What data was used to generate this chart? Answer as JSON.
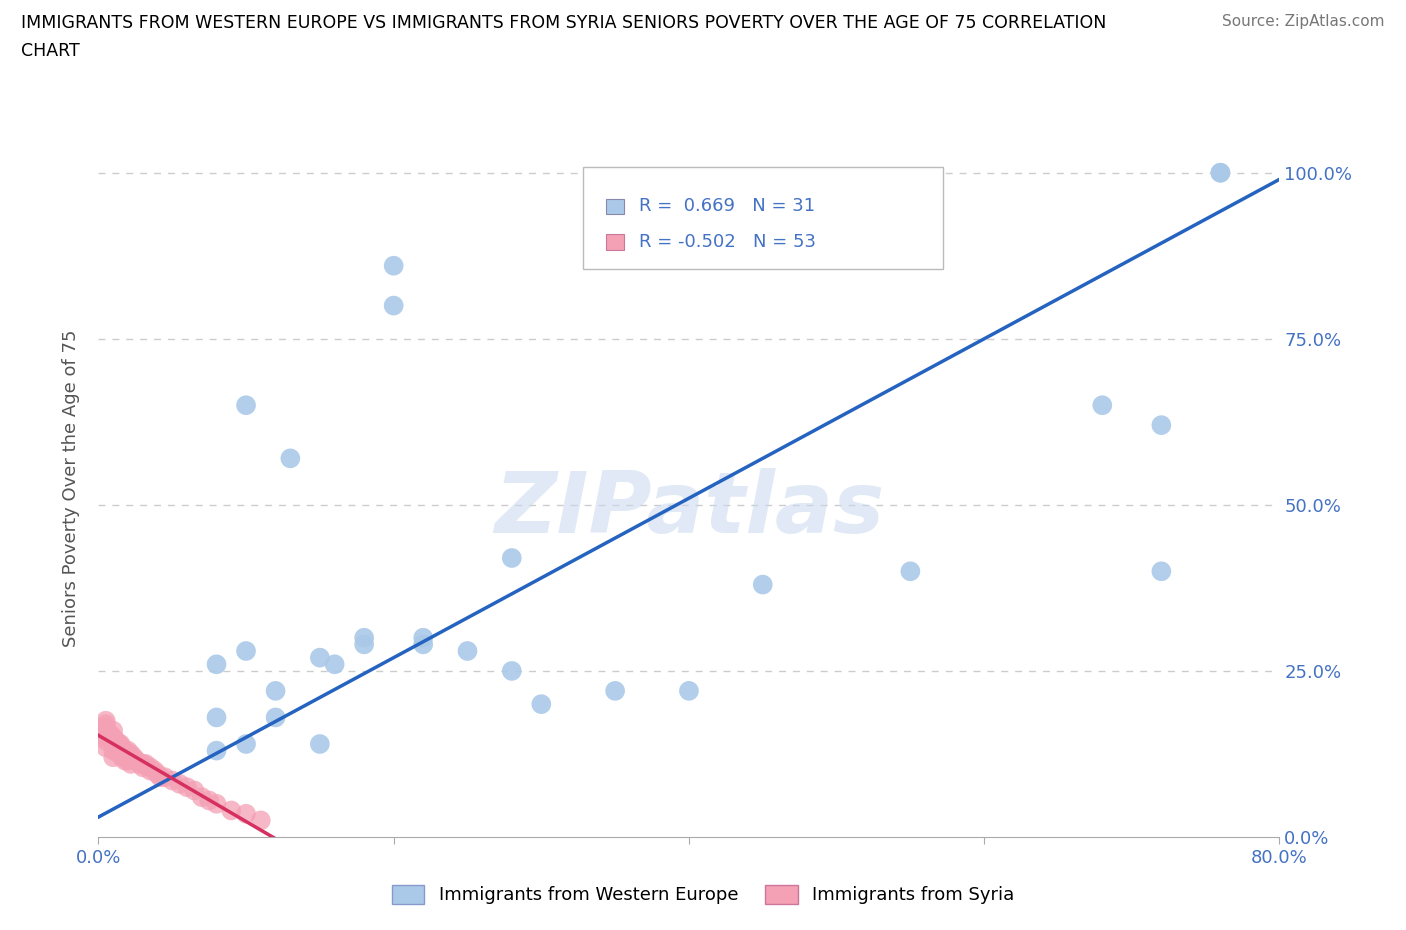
{
  "title_line1": "IMMIGRANTS FROM WESTERN EUROPE VS IMMIGRANTS FROM SYRIA SENIORS POVERTY OVER THE AGE OF 75 CORRELATION",
  "title_line2": "CHART",
  "source": "Source: ZipAtlas.com",
  "ylabel": "Seniors Poverty Over the Age of 75",
  "watermark": "ZIPatlas",
  "blue_R": 0.669,
  "blue_N": 31,
  "pink_R": -0.502,
  "pink_N": 53,
  "blue_color": "#aac9e8",
  "pink_color": "#f4a0b5",
  "line_blue": "#2563c0",
  "line_pink": "#d63060",
  "xlim": [
    0,
    0.8
  ],
  "ylim": [
    0,
    1.05
  ],
  "xtick_positions": [
    0.0,
    0.2,
    0.4,
    0.6,
    0.8
  ],
  "xticklabels": [
    "0.0%",
    "",
    "",
    "",
    "80.0%"
  ],
  "ytick_positions": [
    0.0,
    0.25,
    0.5,
    0.75,
    1.0
  ],
  "yticklabels": [
    "0.0%",
    "25.0%",
    "50.0%",
    "75.0%",
    "100.0%"
  ],
  "blue_points_x": [
    0.2,
    0.2,
    0.1,
    0.13,
    0.1,
    0.08,
    0.15,
    0.18,
    0.18,
    0.22,
    0.22,
    0.16,
    0.28,
    0.12,
    0.25,
    0.35,
    0.3,
    0.4,
    0.45,
    0.28,
    0.55,
    0.68,
    0.72,
    0.72,
    0.12,
    0.08,
    0.15,
    0.1,
    0.08,
    0.76,
    0.76
  ],
  "blue_points_y": [
    0.86,
    0.8,
    0.65,
    0.57,
    0.28,
    0.26,
    0.27,
    0.3,
    0.29,
    0.3,
    0.29,
    0.26,
    0.25,
    0.22,
    0.28,
    0.22,
    0.2,
    0.22,
    0.38,
    0.42,
    0.4,
    0.65,
    0.4,
    0.62,
    0.18,
    0.18,
    0.14,
    0.14,
    0.13,
    1.0,
    1.0
  ],
  "pink_points_x": [
    0.005,
    0.005,
    0.005,
    0.005,
    0.005,
    0.005,
    0.005,
    0.008,
    0.01,
    0.01,
    0.01,
    0.01,
    0.01,
    0.01,
    0.012,
    0.012,
    0.014,
    0.014,
    0.015,
    0.015,
    0.016,
    0.016,
    0.018,
    0.018,
    0.02,
    0.02,
    0.02,
    0.022,
    0.022,
    0.024,
    0.025,
    0.026,
    0.028,
    0.03,
    0.03,
    0.032,
    0.035,
    0.035,
    0.038,
    0.04,
    0.042,
    0.045,
    0.05,
    0.055,
    0.06,
    0.065,
    0.07,
    0.075,
    0.08,
    0.09,
    0.1,
    0.11,
    0.005
  ],
  "pink_points_y": [
    0.155,
    0.16,
    0.15,
    0.165,
    0.145,
    0.135,
    0.17,
    0.155,
    0.15,
    0.14,
    0.16,
    0.13,
    0.145,
    0.12,
    0.145,
    0.13,
    0.14,
    0.125,
    0.14,
    0.13,
    0.135,
    0.12,
    0.13,
    0.115,
    0.13,
    0.12,
    0.115,
    0.125,
    0.11,
    0.12,
    0.115,
    0.115,
    0.11,
    0.11,
    0.105,
    0.11,
    0.105,
    0.1,
    0.1,
    0.095,
    0.09,
    0.09,
    0.085,
    0.08,
    0.075,
    0.07,
    0.06,
    0.055,
    0.05,
    0.04,
    0.035,
    0.025,
    0.175
  ],
  "legend_label_blue": "Immigrants from Western Europe",
  "legend_label_pink": "Immigrants from Syria",
  "background_color": "#ffffff",
  "grid_color": "#cccccc",
  "tick_color": "#4472c4",
  "title_color": "#000000"
}
